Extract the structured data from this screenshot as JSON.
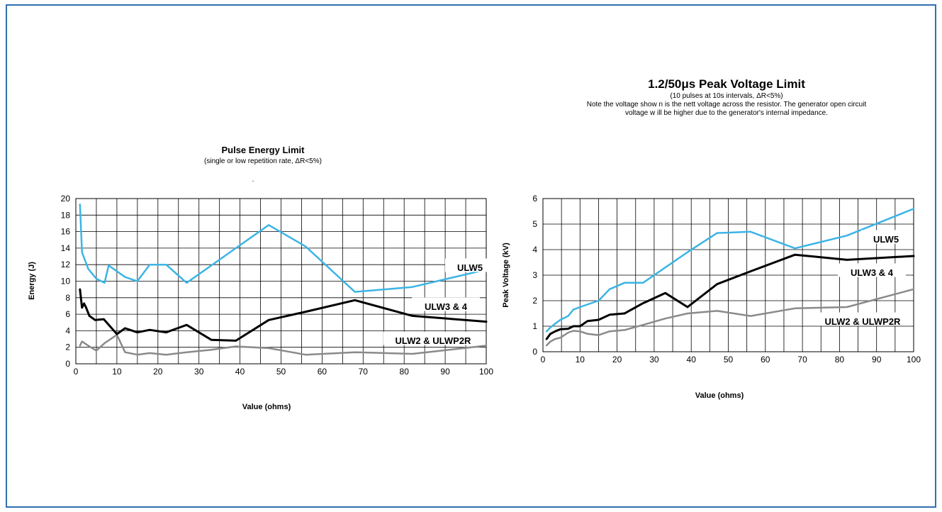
{
  "chart_data": [
    {
      "type": "line",
      "title": "Pulse Energy Limit",
      "subtitle": "(single or low repetition rate, ΔR<5%)",
      "subtitle_mark": ".",
      "xlabel": "Value (ohms)",
      "ylabel": "Energy (J)",
      "xlim": [
        0,
        100
      ],
      "ylim": [
        0,
        20
      ],
      "xticks": [
        0,
        10,
        20,
        30,
        40,
        50,
        60,
        70,
        80,
        90,
        100
      ],
      "yticks": [
        0,
        2,
        4,
        6,
        8,
        10,
        12,
        14,
        16,
        18,
        20
      ],
      "grid": true,
      "series": [
        {
          "name": "ULW5",
          "color": "#3cb4e5",
          "x": [
            1,
            1.5,
            3,
            5,
            7,
            8,
            12,
            15,
            18,
            22,
            27,
            33,
            39,
            47,
            56,
            68,
            82,
            100
          ],
          "y": [
            19.3,
            13.5,
            11.5,
            10.3,
            9.8,
            11.9,
            10.5,
            10.0,
            12.0,
            12.0,
            9.8,
            11.9,
            14.0,
            16.8,
            14.2,
            8.7,
            9.3,
            11.4
          ]
        },
        {
          "name": "ULW3 & 4",
          "color": "#000000",
          "x": [
            1,
            1.5,
            2,
            2.5,
            3.3,
            4.7,
            6.8,
            10,
            12,
            15,
            18,
            22,
            27,
            33,
            39,
            47,
            56,
            68,
            82,
            100
          ],
          "y": [
            9.0,
            6.8,
            7.3,
            6.8,
            5.8,
            5.3,
            5.4,
            3.6,
            4.3,
            3.8,
            4.1,
            3.8,
            4.7,
            2.9,
            2.8,
            5.3,
            6.3,
            7.7,
            5.8,
            5.1
          ]
        },
        {
          "name": "ULW2 & ULWP2R",
          "color": "#8a8a8e",
          "x": [
            1,
            1.5,
            3,
            5,
            7,
            10,
            12,
            15,
            18,
            22,
            27,
            33,
            39,
            47,
            56,
            68,
            82,
            100
          ],
          "y": [
            2.2,
            2.7,
            2.2,
            1.6,
            2.5,
            3.5,
            1.4,
            1.1,
            1.3,
            1.1,
            1.4,
            1.7,
            2.1,
            1.9,
            1.1,
            1.4,
            1.2,
            2.2
          ]
        }
      ]
    },
    {
      "type": "line",
      "title": "1.2/50μs Peak Voltage Limit",
      "subtitle": "(10 pulses at 10s intervals, ΔR<5%)",
      "note_line1": "Note the voltage show n is the nett voltage across the resistor. The generator open circuit",
      "note_line2": "voltage w ill be higher due to the generator's internal impedance.",
      "xlabel": "Value (ohms)",
      "ylabel": "Peak Voltage (kV)",
      "xlim": [
        0,
        100
      ],
      "ylim": [
        0,
        6
      ],
      "xticks": [
        0,
        10,
        20,
        30,
        40,
        50,
        60,
        70,
        80,
        90,
        100
      ],
      "yticks": [
        0,
        1,
        2,
        3,
        4,
        5,
        6
      ],
      "grid": true,
      "series": [
        {
          "name": "ULW5",
          "color": "#3cb4e5",
          "x": [
            1,
            2,
            3.3,
            4.7,
            6.8,
            8.2,
            10,
            15,
            18,
            22,
            27,
            33,
            39,
            47,
            56,
            68,
            82,
            100
          ],
          "y": [
            0.8,
            0.95,
            1.1,
            1.25,
            1.4,
            1.65,
            1.75,
            2.0,
            2.45,
            2.7,
            2.7,
            3.3,
            3.9,
            4.65,
            4.7,
            4.05,
            4.55,
            5.6
          ]
        },
        {
          "name": "ULW3 & 4",
          "color": "#000000",
          "x": [
            1,
            2,
            3.3,
            4.7,
            6.8,
            8.2,
            10,
            12,
            15,
            18,
            22,
            27,
            33,
            39,
            47,
            56,
            68,
            82,
            100
          ],
          "y": [
            0.5,
            0.7,
            0.8,
            0.88,
            0.9,
            1.0,
            1.0,
            1.2,
            1.25,
            1.45,
            1.5,
            1.9,
            2.3,
            1.75,
            2.65,
            3.15,
            3.8,
            3.6,
            3.75
          ]
        },
        {
          "name": "ULW2 & ULWP2R",
          "color": "#8a8a8e",
          "x": [
            1,
            2,
            3.3,
            4.7,
            6.8,
            8.2,
            10,
            12,
            15,
            18,
            22,
            27,
            33,
            39,
            47,
            56,
            68,
            82,
            100
          ],
          "y": [
            0.25,
            0.4,
            0.5,
            0.55,
            0.75,
            0.82,
            0.8,
            0.7,
            0.65,
            0.8,
            0.85,
            1.05,
            1.3,
            1.5,
            1.6,
            1.4,
            1.7,
            1.75,
            2.45
          ]
        }
      ]
    }
  ]
}
